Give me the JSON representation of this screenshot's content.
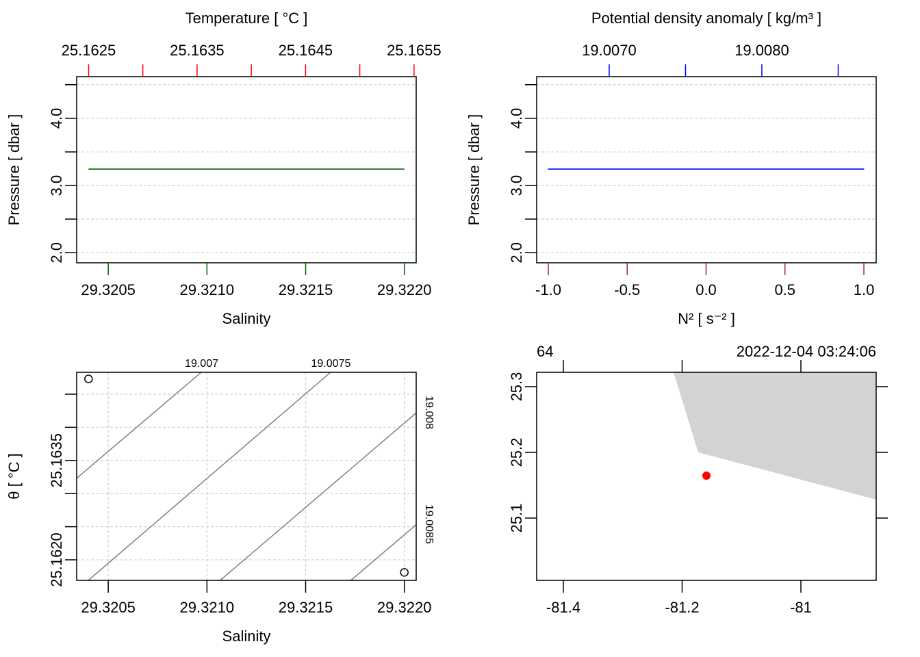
{
  "chart_data": [
    {
      "type": "profile",
      "xlabel": "Salinity",
      "xcolor": "#006400",
      "x2label": "Temperature [ °C ]",
      "x2color": "#ff0000",
      "ylabel": "Pressure [ dbar ]",
      "xlim": [
        29.32034,
        29.32206
      ],
      "xticks": [
        29.3205,
        {
          "value": 29.321,
          "label": "29.3210"
        },
        29.3215,
        {
          "value": 29.322,
          "label": "29.3220"
        }
      ],
      "x2lim": [
        25.16239,
        25.16552
      ],
      "x2ticks": [
        25.1625,
        25.1635,
        25.1645,
        25.1655
      ],
      "x2minor": [
        25.163,
        25.164,
        25.165
      ],
      "ylim": [
        1.85,
        4.62
      ],
      "yticks": [
        {
          "value": 2,
          "label": "2.0"
        },
        {
          "value": 3,
          "label": "3.0"
        },
        {
          "value": 4,
          "label": "4.0"
        }
      ],
      "yminor": [
        2.5,
        3.5,
        4.5
      ],
      "grid": "y",
      "series": [
        {
          "color": "#006400",
          "x": [
            29.3204,
            29.322
          ],
          "y": [
            3.245,
            3.245
          ]
        }
      ]
    },
    {
      "type": "profile",
      "xlabel": "N² [ s⁻² ]",
      "xcolor": "#a52a2a",
      "x2label": "Potential density anomaly [ kg/m³ ]",
      "x2color": "#0000ff",
      "ylabel": "Pressure [ dbar ]",
      "xlim": [
        -1.0737,
        1.078
      ],
      "xticks": [
        {
          "value": -1,
          "label": "-1.0"
        },
        -0.5,
        {
          "value": 0,
          "label": "0.0"
        },
        0.5,
        {
          "value": 1,
          "label": "1.0"
        }
      ],
      "x2lim": [
        19.006525,
        19.008749
      ],
      "x2ticks": [
        {
          "value": 19.007,
          "label": "19.0070"
        },
        {
          "value": 19.008,
          "label": "19.0080"
        }
      ],
      "x2minor": [
        19.0075,
        19.0085
      ],
      "ylim": [
        1.85,
        4.62
      ],
      "yticks": [
        {
          "value": 2,
          "label": "2.0"
        },
        {
          "value": 3,
          "label": "3.0"
        },
        {
          "value": 4,
          "label": "4.0"
        }
      ],
      "yminor": [
        2.5,
        3.5,
        4.5
      ],
      "grid": "y",
      "series": [
        {
          "color": "#0000ff",
          "axis": "x2",
          "x": [
            19.0066,
            19.00867
          ],
          "y": [
            3.245,
            3.245
          ]
        }
      ]
    },
    {
      "type": "ts",
      "xlabel": "Salinity",
      "ylabel": "θ [ °C ]",
      "xlim": [
        29.32034,
        29.32206
      ],
      "xticks": [
        29.3205,
        {
          "value": 29.321,
          "label": "29.3210"
        },
        29.3215,
        {
          "value": 29.322,
          "label": "29.3220"
        }
      ],
      "ylim": [
        25.16169,
        25.16483
      ],
      "yticks": [
        {
          "value": 25.162,
          "label": "25.1620"
        },
        25.1635
      ],
      "yminor": [
        25.1625,
        25.163,
        25.164,
        25.1645
      ],
      "grid": "xy",
      "salinity": [
        29.3204,
        29.322
      ],
      "theta": [
        25.16473,
        25.16181
      ],
      "isopycnal_color": "#808080",
      "isopycnals": [
        {
          "level": 19.007,
          "salinity": [
            29.320336,
            29.320973
          ],
          "theta": [
            25.163221,
            25.164834
          ]
        },
        {
          "level": 19.0075,
          "salinity": [
            29.320399,
            29.321628
          ],
          "theta": [
            25.16169,
            25.164834
          ]
        },
        {
          "level": 19.008,
          "salinity": [
            29.321067,
            29.322063
          ],
          "theta": [
            25.16169,
            25.164224
          ]
        },
        {
          "level": 19.0085,
          "salinity": [
            29.321729,
            29.322063
          ],
          "theta": [
            25.16169,
            25.162538
          ]
        }
      ]
    },
    {
      "type": "map",
      "station": "64",
      "time": "2022-12-04 03:24:06",
      "xlim": [
        -81.44496,
        -80.8732
      ],
      "xticks": [
        -81.4,
        -81.2,
        -81
      ],
      "ylim": [
        25.00521,
        25.32188
      ],
      "yticks": [
        25.1,
        25.2,
        25.3
      ],
      "land_color": "#d3d3d3",
      "coast_lon": [
        -81.2144,
        -81.1729,
        -80.8732,
        -80.8732
      ],
      "coast_lat": [
        25.32188,
        25.2,
        25.12813,
        25.32188
      ],
      "station_color": "#ff0000",
      "station_lon": -81.15908,
      "station_lat": 25.16458
    }
  ]
}
